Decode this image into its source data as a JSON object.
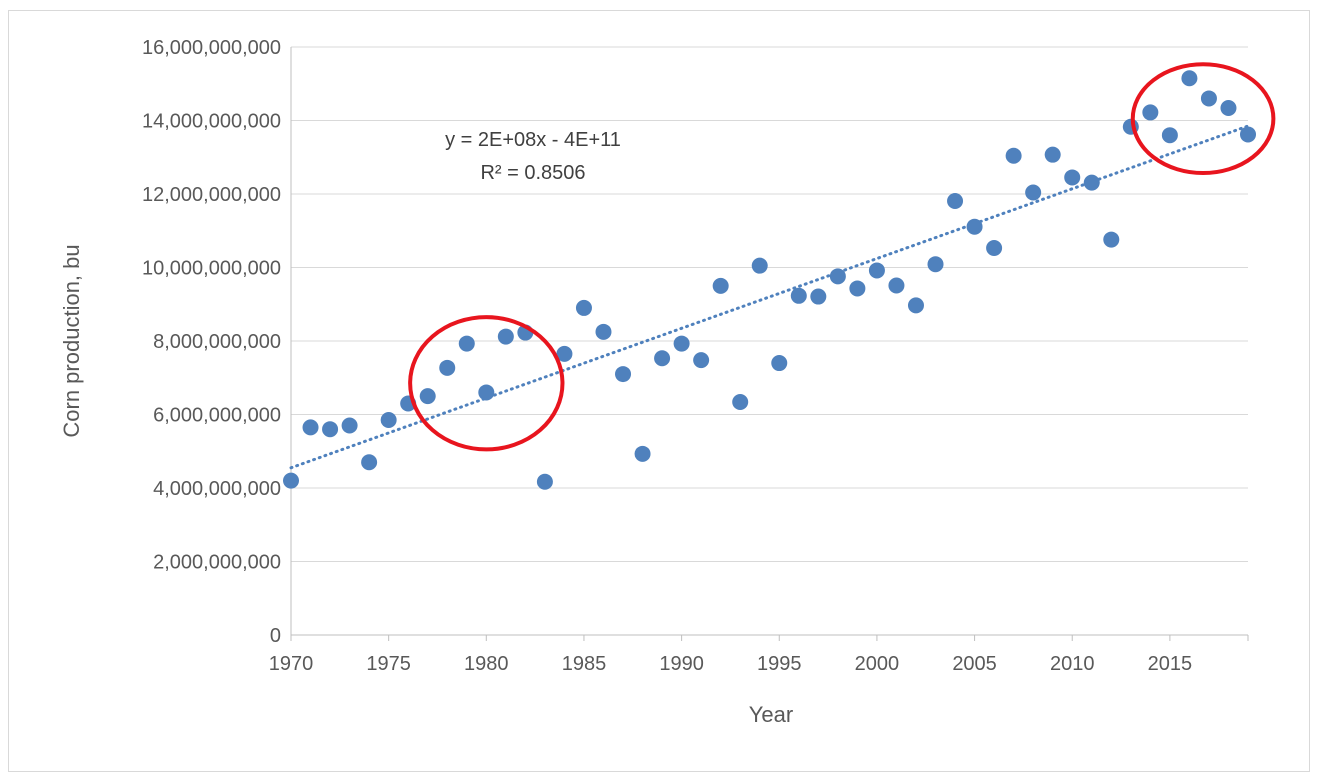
{
  "chart_data": {
    "type": "scatter",
    "title": "",
    "xlabel": "Year",
    "ylabel": "Corn production, bu",
    "xlim": [
      1970,
      2019
    ],
    "ylim": [
      0,
      16000000000
    ],
    "x_ticks": [
      "1970",
      "1975",
      "1980",
      "1985",
      "1990",
      "1995",
      "2000",
      "2005",
      "2010",
      "2015"
    ],
    "y_ticks": [
      "0",
      "2,000,000,000",
      "4,000,000,000",
      "6,000,000,000",
      "8,000,000,000",
      "10,000,000,000",
      "12,000,000,000",
      "14,000,000,000",
      "16,000,000,000"
    ],
    "grid": "horizontal",
    "series": [
      {
        "color": "#4f81bd",
        "points": [
          [
            1970,
            4200000000
          ],
          [
            1971,
            5650000000
          ],
          [
            1972,
            5600000000
          ],
          [
            1973,
            5700000000
          ],
          [
            1974,
            4700000000
          ],
          [
            1975,
            5850000000
          ],
          [
            1976,
            6300000000
          ],
          [
            1977,
            6500000000
          ],
          [
            1978,
            7270000000
          ],
          [
            1979,
            7930000000
          ],
          [
            1980,
            6600000000
          ],
          [
            1981,
            8120000000
          ],
          [
            1982,
            8230000000
          ],
          [
            1983,
            4170000000
          ],
          [
            1984,
            7650000000
          ],
          [
            1985,
            8900000000
          ],
          [
            1986,
            8250000000
          ],
          [
            1987,
            7100000000
          ],
          [
            1988,
            4930000000
          ],
          [
            1989,
            7530000000
          ],
          [
            1990,
            7930000000
          ],
          [
            1991,
            7480000000
          ],
          [
            1992,
            9500000000
          ],
          [
            1993,
            6340000000
          ],
          [
            1994,
            10050000000
          ],
          [
            1995,
            7400000000
          ],
          [
            1996,
            9230000000
          ],
          [
            1997,
            9210000000
          ],
          [
            1998,
            9760000000
          ],
          [
            1999,
            9430000000
          ],
          [
            2000,
            9920000000
          ],
          [
            2001,
            9510000000
          ],
          [
            2002,
            8970000000
          ],
          [
            2003,
            10090000000
          ],
          [
            2004,
            11810000000
          ],
          [
            2005,
            11110000000
          ],
          [
            2006,
            10530000000
          ],
          [
            2007,
            13040000000
          ],
          [
            2008,
            12040000000
          ],
          [
            2009,
            13070000000
          ],
          [
            2010,
            12450000000
          ],
          [
            2011,
            12310000000
          ],
          [
            2012,
            10760000000
          ],
          [
            2013,
            13830000000
          ],
          [
            2014,
            14220000000
          ],
          [
            2015,
            13600000000
          ],
          [
            2016,
            15150000000
          ],
          [
            2017,
            14600000000
          ],
          [
            2018,
            14340000000
          ],
          [
            2019,
            13620000000
          ]
        ]
      }
    ],
    "trendline": {
      "type": "linear",
      "style": "dotted",
      "color": "#4f81bd",
      "start": [
        1970,
        4550000000
      ],
      "end": [
        2019,
        13850000000
      ]
    },
    "annotations": {
      "equation": "y = 2E+08x - 4E+11",
      "r_squared": "R² = 0.8506",
      "highlight_color": "#e8151e",
      "highlights": [
        {
          "center": [
            1980,
            6850000000
          ],
          "radius_years": 3.9,
          "radius_value": 1800000000
        },
        {
          "center": [
            2016.7,
            14050000000
          ],
          "radius_years": 3.6,
          "radius_value": 1480000000
        }
      ]
    }
  }
}
